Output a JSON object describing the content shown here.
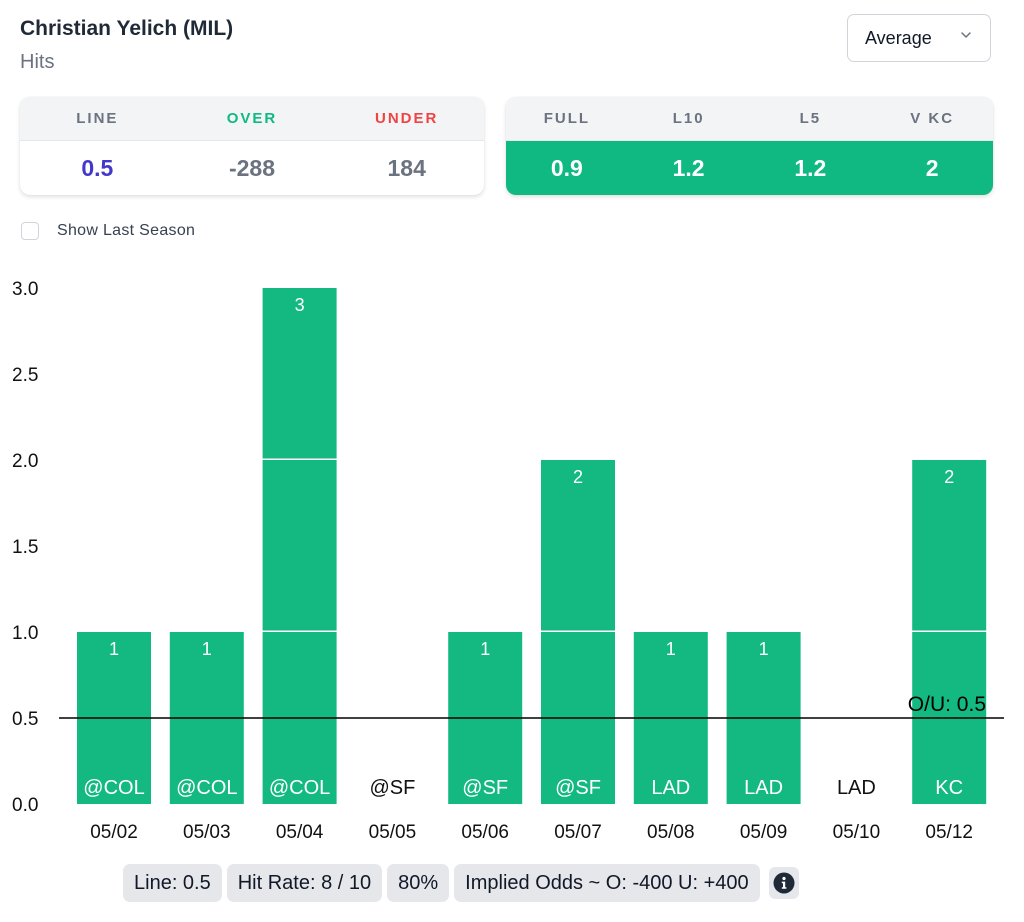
{
  "header": {
    "title": "Christian Yelich (MIL)",
    "subtitle": "Hits"
  },
  "stat_select": {
    "value": "Average",
    "icon": "chevron-down-icon"
  },
  "odds_card": {
    "headers": {
      "line": "LINE",
      "over": "OVER",
      "under": "UNDER"
    },
    "values": {
      "line": "0.5",
      "over": "-288",
      "under": "184"
    }
  },
  "avg_card": {
    "headers": [
      "FULL",
      "L10",
      "L5",
      "V KC"
    ],
    "values": [
      "0.9",
      "1.2",
      "1.2",
      "2"
    ]
  },
  "show_last_season": {
    "label": "Show Last Season",
    "checked": false
  },
  "colors": {
    "bar": "#13b981",
    "over": "#10b981",
    "under": "#ef4444",
    "line": "#4338ca"
  },
  "chart_data": {
    "type": "bar",
    "categories": [
      "05/02",
      "05/03",
      "05/04",
      "05/05",
      "05/06",
      "05/07",
      "05/08",
      "05/09",
      "05/10",
      "05/12"
    ],
    "opponents": [
      "@COL",
      "@COL",
      "@COL",
      "@SF",
      "@SF",
      "@SF",
      "LAD",
      "LAD",
      "LAD",
      "KC"
    ],
    "values": [
      1,
      1,
      3,
      0,
      1,
      2,
      1,
      1,
      0,
      2
    ],
    "yticks": [
      "0.0",
      "0.5",
      "1.0",
      "1.5",
      "2.0",
      "2.5",
      "3.0"
    ],
    "ylim": [
      0,
      3
    ],
    "reference_line": {
      "value": 0.5,
      "label": "O/U: 0.5"
    },
    "title": "",
    "xlabel": "",
    "ylabel": "",
    "grid": false,
    "legend": "none"
  },
  "footer": {
    "line": "Line: 0.5",
    "hit_rate": "Hit Rate: 8 / 10",
    "percent": "80%",
    "implied_odds": "Implied Odds ~ O: -400 U: +400",
    "info_icon": "info-icon"
  }
}
